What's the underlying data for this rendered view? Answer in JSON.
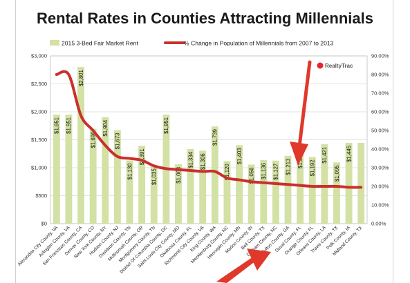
{
  "chart_data": {
    "type": "bar",
    "title": "Rental Rates in Counties Attracting Millennials",
    "categories": [
      "Alexandria City County, VA",
      "Arlington County, VA",
      "San Francisco County, CA",
      "Denver County, CO",
      "New York County, NY",
      "Hudson County, NJ",
      "Davidson County, TN",
      "Multnomah County, OR",
      "Montgomery County, TN",
      "District Of Columbia County, DC",
      "Saint Louis City County, MO",
      "Okaloosa County, FL",
      "Richmond City County, VA",
      "King County, WA",
      "Mecklenburg County, NC",
      "Hennepin County, MN",
      "Marion County, IN",
      "Bell County, TX",
      "Durham County, NC",
      "Fulton County, GA",
      "Duval County, FL",
      "Orange County, FL",
      "Orleans County, LA",
      "Travis County, TX",
      "Polk County, IA",
      "Midland County, TX"
    ],
    "series": [
      {
        "name": "2015 3-Bed Fair Market Rent",
        "type": "bar",
        "axis": "left",
        "color": "#d3e1a4",
        "values": [
          1951,
          1951,
          2801,
          1696,
          1904,
          1673,
          1130,
          1391,
          1035,
          1951,
          1063,
          1334,
          1306,
          1739,
          1120,
          1403,
          1056,
          1136,
          1127,
          1213,
          1330,
          1192,
          1421,
          1095,
          1445,
          1445
        ],
        "labels": [
          "$1,951",
          "$1,951",
          "$2,801",
          "$1,696",
          "$1,904",
          "$1,673",
          "$1,130",
          "$1,391",
          "$1,035",
          "$1,951",
          "$1,063",
          "$1,334",
          "$1,306",
          "$1,739",
          "$1,120",
          "$1,403",
          "$1,056",
          "$1,136",
          "$1,127",
          "$1,213",
          "$1,330",
          "$1,192",
          "$1,421",
          "$1,095",
          "$1,445",
          ""
        ]
      },
      {
        "name": "% Change in Population of Millennials from 2007 to 2013",
        "type": "line",
        "axis": "right",
        "color": "#c9302c",
        "values": [
          80,
          80,
          58,
          50,
          42,
          36,
          35,
          34,
          31,
          29.5,
          29,
          28.5,
          28,
          28,
          24.5,
          23.5,
          22.5,
          22,
          21.5,
          21,
          20.5,
          20,
          20,
          20,
          19.5,
          19.5
        ]
      }
    ],
    "y_left": {
      "min": 0,
      "max": 3000,
      "ticks": [
        0,
        500,
        1000,
        1500,
        2000,
        2500,
        3000
      ],
      "tick_labels": [
        "$0",
        "$500",
        "$1,000",
        "$1,500",
        "$2,000",
        "$2,500",
        "$3,000"
      ]
    },
    "y_right": {
      "min": 0,
      "max": 90,
      "ticks": [
        0,
        10,
        20,
        30,
        40,
        50,
        60,
        70,
        80,
        90
      ],
      "tick_labels": [
        "0.00%",
        "10.00%",
        "20.00%",
        "30.00%",
        "40.00%",
        "50.00%",
        "60.00%",
        "70.00%",
        "80.00%",
        "90.00%"
      ]
    },
    "grid": true,
    "legend_position": "top",
    "logo_text": "RealtyTrac",
    "annotation_color": "#e0382a"
  }
}
